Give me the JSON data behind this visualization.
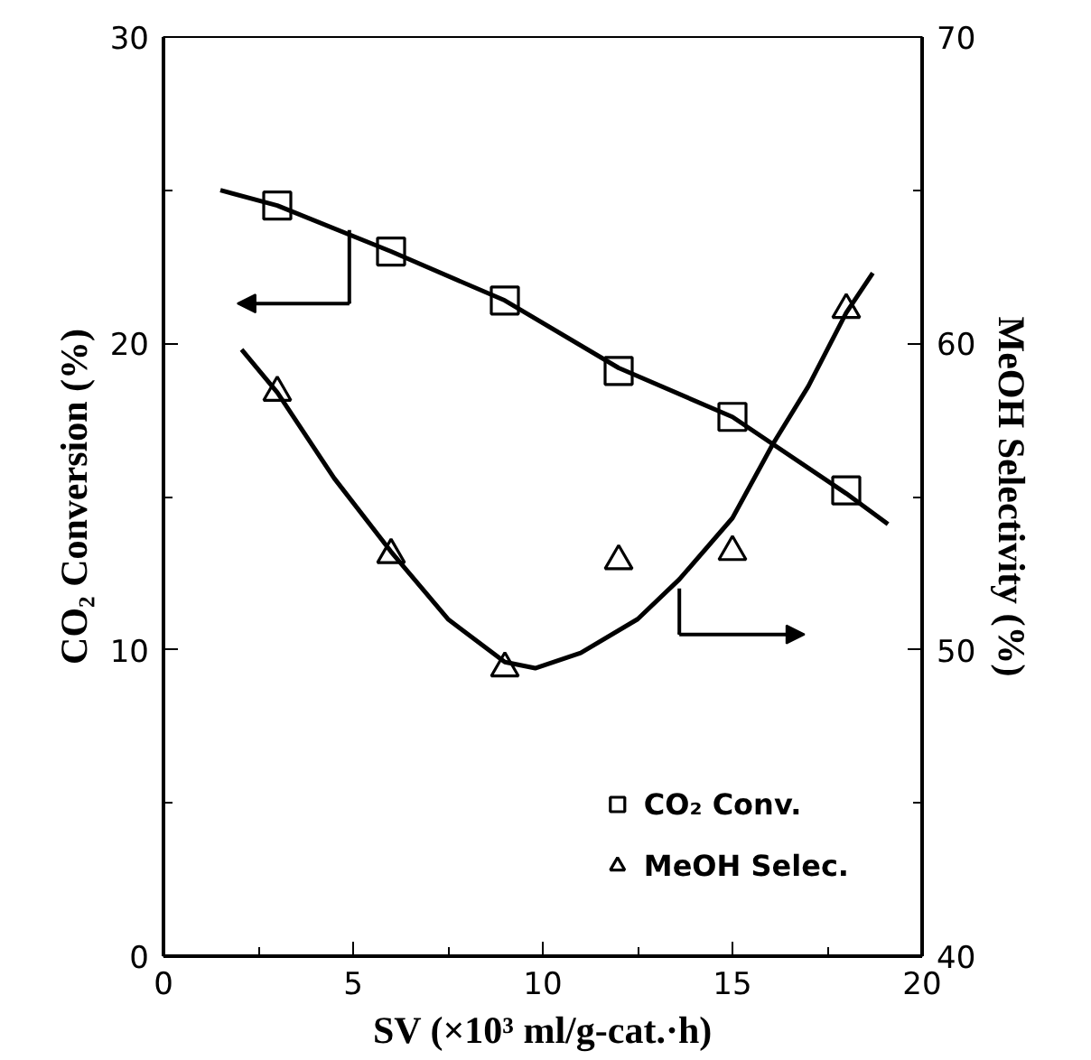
{
  "chart_data": {
    "type": "scatter",
    "xlabel": "SV (×10³ ml/g-cat.·h)",
    "ylabel": "CO₂ Conversion (%)",
    "y2label": "MeOH Selectivity (%)",
    "xlim": [
      0,
      20
    ],
    "xticks": [
      0,
      5,
      10,
      15,
      20
    ],
    "ylim": [
      0,
      30
    ],
    "yticks": [
      0,
      10,
      20,
      30
    ],
    "y2lim": [
      40,
      70
    ],
    "y2ticks": [
      40,
      50,
      60,
      70
    ],
    "grid": false,
    "legend": "bottom right",
    "series": [
      {
        "name": "CO₂ Conv.",
        "color": "#000000",
        "marker": "square",
        "x": [
          3,
          6,
          9,
          12,
          15,
          18
        ],
        "values": [
          24.5,
          23.0,
          21.4,
          19.1,
          17.6,
          15.2
        ]
      },
      {
        "name": "MeOH Selec.",
        "color": "#000000",
        "marker": "triangle",
        "axis": "y2",
        "x": [
          3,
          6,
          9,
          12,
          15,
          18
        ],
        "values": [
          58.4,
          53.1,
          49.4,
          52.9,
          53.2,
          61.1
        ]
      },
      {
        "type": "line",
        "color": "#000000",
        "x": [
          1.5,
          3,
          6,
          9,
          12,
          15,
          18,
          19.1
        ],
        "values": [
          25.0,
          24.5,
          23.0,
          21.4,
          19.2,
          17.6,
          15.1,
          14.1
        ]
      },
      {
        "type": "line",
        "color": "#000000",
        "axis": "y2",
        "x": [
          2.06,
          3,
          4.5,
          6,
          7.5,
          9,
          9.8,
          11,
          12.5,
          13.6,
          15,
          16.06,
          17,
          18,
          18.7
        ],
        "values": [
          59.8,
          58.4,
          55.6,
          53.2,
          51.0,
          49.6,
          49.4,
          49.9,
          51.0,
          52.3,
          54.3,
          56.7,
          58.6,
          61.0,
          62.3
        ]
      }
    ]
  }
}
